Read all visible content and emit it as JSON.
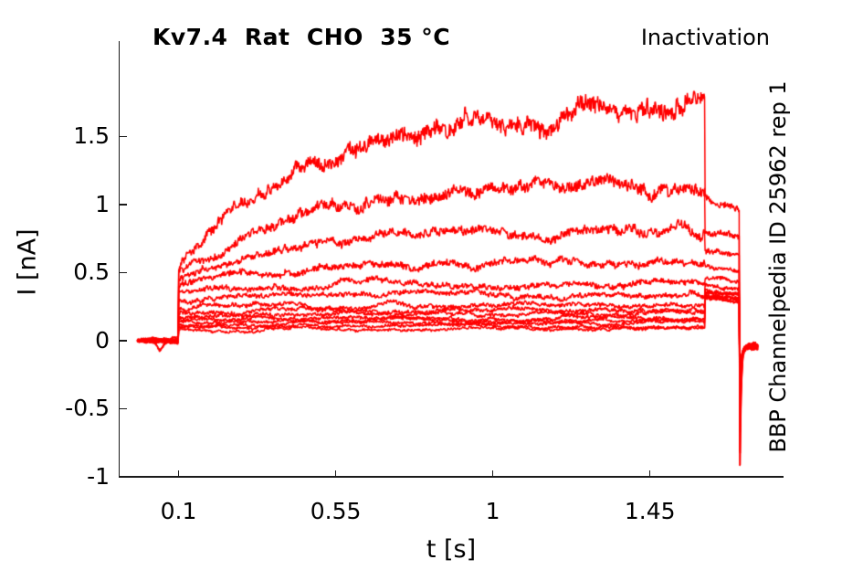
{
  "chart_data": {
    "type": "line",
    "title": "Kv7.4  Rat  CHO  35 °C",
    "corner_label": "Inactivation",
    "side_label": "BBP Channelpedia ID 25962 rep 1",
    "xlabel": "t [s]",
    "ylabel": "I [nA]",
    "xlim": [
      -0.07,
      1.83
    ],
    "ylim": [
      -1.0,
      2.2
    ],
    "xticks": [
      0.1,
      0.55,
      1,
      1.45
    ],
    "xtick_labels": [
      "0.1",
      "0.55",
      "1",
      "1.45"
    ],
    "yticks": [
      1.5,
      1,
      0.5,
      0,
      -0.5,
      -1
    ],
    "ytick_labels": [
      "1.5",
      "1",
      "0.5",
      "0",
      "-0.5",
      "-1"
    ],
    "grid": false,
    "legend": null,
    "trace_color": "#ff0000",
    "line_width": 1.5,
    "protocol": {
      "t_trace_start_s": -0.018,
      "t_step_on_s": 0.1,
      "t_step_off_s": 1.607,
      "t_tail_end_s": 1.706,
      "t_trace_end_s": 1.76,
      "baseline_nA": 0,
      "post_spike_nA": -0.045,
      "rise_tau_s": 0.38,
      "tail_decay_frac": 0.07
    },
    "sweeps": [
      {
        "step_nA": 0.55,
        "end_nA": 1.7,
        "tail_nA": 1.0,
        "spike_nA": -0.93
      },
      {
        "step_nA": 0.5,
        "end_nA": 1.16,
        "tail_nA": 0.85,
        "spike_nA": -0.8
      },
      {
        "step_nA": 0.455,
        "end_nA": 0.8,
        "tail_nA": 0.66,
        "spike_nA": -0.68
      },
      {
        "step_nA": 0.42,
        "end_nA": 0.57,
        "tail_nA": 0.55,
        "spike_nA": -0.58
      },
      {
        "step_nA": 0.36,
        "end_nA": 0.42,
        "tail_nA": 0.46,
        "spike_nA": -0.5
      },
      {
        "step_nA": 0.3,
        "end_nA": 0.33,
        "tail_nA": 0.415,
        "spike_nA": -0.44
      },
      {
        "step_nA": 0.245,
        "end_nA": 0.265,
        "tail_nA": 0.385,
        "spike_nA": -0.4
      },
      {
        "step_nA": 0.205,
        "end_nA": 0.225,
        "tail_nA": 0.36,
        "spike_nA": -0.37
      },
      {
        "step_nA": 0.178,
        "end_nA": 0.195,
        "tail_nA": 0.348,
        "spike_nA": -0.34
      },
      {
        "step_nA": 0.155,
        "end_nA": 0.168,
        "tail_nA": 0.34,
        "spike_nA": -0.31
      },
      {
        "step_nA": 0.135,
        "end_nA": 0.148,
        "tail_nA": 0.333,
        "spike_nA": -0.29
      },
      {
        "step_nA": 0.117,
        "end_nA": 0.128,
        "tail_nA": 0.327,
        "spike_nA": -0.27
      },
      {
        "step_nA": 0.1,
        "end_nA": 0.108,
        "tail_nA": 0.321,
        "spike_nA": -0.25
      },
      {
        "step_nA": 0.082,
        "end_nA": 0.088,
        "tail_nA": 0.315,
        "spike_nA": -0.23
      }
    ]
  }
}
